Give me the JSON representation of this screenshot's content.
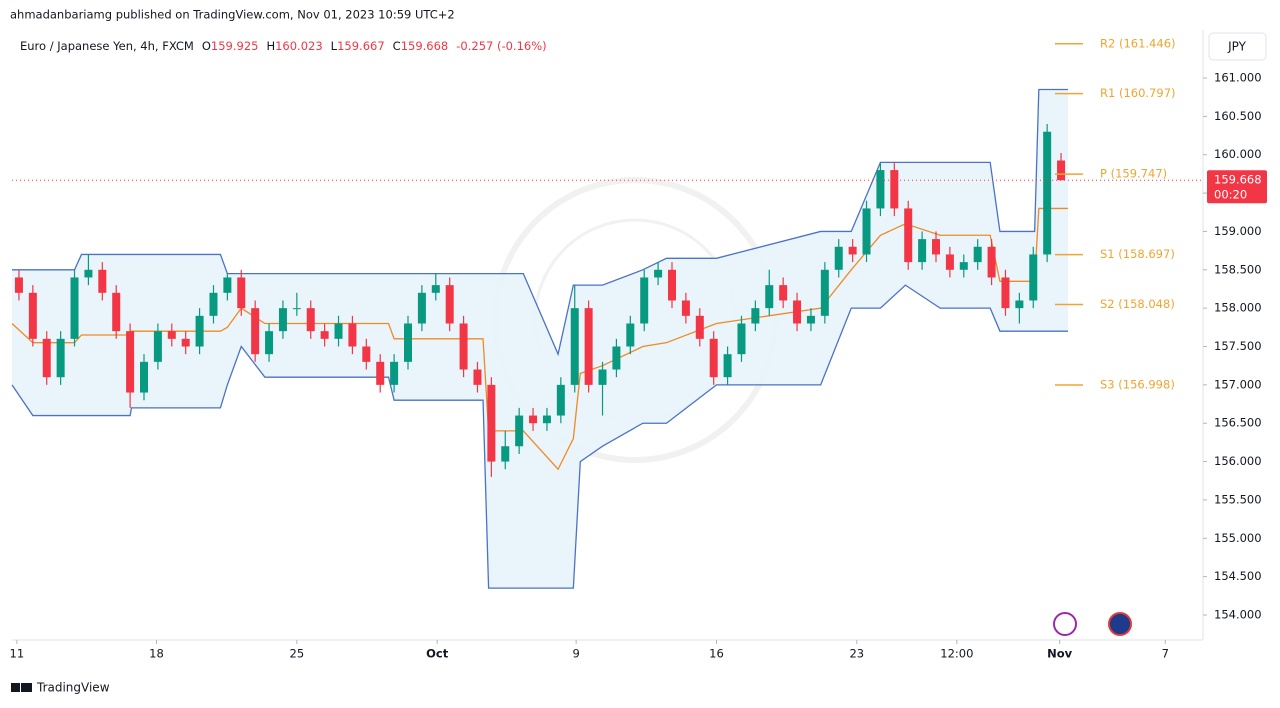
{
  "top_caption": "ahmadanbariamg published on TradingView.com, Nov 01, 2023 10:59 UTC+2",
  "chart_data": {
    "type": "candlestick",
    "title": "Euro / Japanese Yen, 4h, FXCM",
    "ohlc_labels": [
      "O",
      "H",
      "L",
      "C"
    ],
    "change": "-0.257 (-0.16%)",
    "currency": "JPY",
    "countdown": "00:20",
    "up_color": "#089981",
    "down_color": "#f23645",
    "candles": [
      [
        158.4,
        158.5,
        158.1,
        158.2
      ],
      [
        158.2,
        158.3,
        157.5,
        157.6
      ],
      [
        157.6,
        157.7,
        157.0,
        157.1
      ],
      [
        157.1,
        157.7,
        157.0,
        157.6
      ],
      [
        157.6,
        158.5,
        157.5,
        158.4
      ],
      [
        158.4,
        158.7,
        158.3,
        158.5
      ],
      [
        158.5,
        158.6,
        158.1,
        158.2
      ],
      [
        158.2,
        158.3,
        157.6,
        157.7
      ],
      [
        157.7,
        157.8,
        156.7,
        156.9
      ],
      [
        156.9,
        157.4,
        156.8,
        157.3
      ],
      [
        157.3,
        157.8,
        157.2,
        157.7
      ],
      [
        157.7,
        157.8,
        157.5,
        157.6
      ],
      [
        157.6,
        157.7,
        157.4,
        157.5
      ],
      [
        157.5,
        158.0,
        157.4,
        157.9
      ],
      [
        157.9,
        158.3,
        157.8,
        158.2
      ],
      [
        158.2,
        158.45,
        158.1,
        158.4
      ],
      [
        158.4,
        158.5,
        157.9,
        158.0
      ],
      [
        158.0,
        158.1,
        157.3,
        157.4
      ],
      [
        157.4,
        157.8,
        157.3,
        157.7
      ],
      [
        157.7,
        158.1,
        157.6,
        158.0
      ],
      [
        158.0,
        158.2,
        157.9,
        158.0
      ],
      [
        158.0,
        158.1,
        157.6,
        157.7
      ],
      [
        157.7,
        157.8,
        157.5,
        157.6
      ],
      [
        157.6,
        157.9,
        157.5,
        157.8
      ],
      [
        157.8,
        157.9,
        157.4,
        157.5
      ],
      [
        157.5,
        157.6,
        157.2,
        157.3
      ],
      [
        157.3,
        157.4,
        156.9,
        157.0
      ],
      [
        157.0,
        157.4,
        156.9,
        157.3
      ],
      [
        157.3,
        157.9,
        157.2,
        157.8
      ],
      [
        157.8,
        158.3,
        157.7,
        158.2
      ],
      [
        158.2,
        158.45,
        158.1,
        158.3
      ],
      [
        158.3,
        158.4,
        157.7,
        157.8
      ],
      [
        157.8,
        157.9,
        157.1,
        157.2
      ],
      [
        157.2,
        157.3,
        156.9,
        157.0
      ],
      [
        157.0,
        157.1,
        155.8,
        156.0
      ],
      [
        156.0,
        156.4,
        155.9,
        156.2
      ],
      [
        156.2,
        156.7,
        156.1,
        156.6
      ],
      [
        156.6,
        156.7,
        156.4,
        156.5
      ],
      [
        156.5,
        156.7,
        156.4,
        156.6
      ],
      [
        156.6,
        157.1,
        156.5,
        157.0
      ],
      [
        157.0,
        158.3,
        156.9,
        158.0
      ],
      [
        158.0,
        158.1,
        156.9,
        157.0
      ],
      [
        157.0,
        157.3,
        156.6,
        157.2
      ],
      [
        157.2,
        157.6,
        157.1,
        157.5
      ],
      [
        157.5,
        157.9,
        157.4,
        157.8
      ],
      [
        157.8,
        158.5,
        157.7,
        158.4
      ],
      [
        158.4,
        158.6,
        158.3,
        158.5
      ],
      [
        158.5,
        158.6,
        158.0,
        158.1
      ],
      [
        158.1,
        158.2,
        157.8,
        157.9
      ],
      [
        157.9,
        158.0,
        157.5,
        157.6
      ],
      [
        157.6,
        157.7,
        157.0,
        157.1
      ],
      [
        157.1,
        157.5,
        157.0,
        157.4
      ],
      [
        157.4,
        157.9,
        157.3,
        157.8
      ],
      [
        157.8,
        158.1,
        157.7,
        158.0
      ],
      [
        158.0,
        158.5,
        157.9,
        158.3
      ],
      [
        158.3,
        158.4,
        158.0,
        158.1
      ],
      [
        158.1,
        158.2,
        157.7,
        157.8
      ],
      [
        157.8,
        158.0,
        157.7,
        157.9
      ],
      [
        157.9,
        158.6,
        157.8,
        158.5
      ],
      [
        158.5,
        158.9,
        158.4,
        158.8
      ],
      [
        158.8,
        158.9,
        158.6,
        158.7
      ],
      [
        158.7,
        159.4,
        158.6,
        159.3
      ],
      [
        159.3,
        159.9,
        159.2,
        159.8
      ],
      [
        159.8,
        159.9,
        159.2,
        159.3
      ],
      [
        159.3,
        159.4,
        158.5,
        158.6
      ],
      [
        158.6,
        159.0,
        158.5,
        158.9
      ],
      [
        158.9,
        159.0,
        158.6,
        158.7
      ],
      [
        158.7,
        158.8,
        158.4,
        158.5
      ],
      [
        158.5,
        158.7,
        158.4,
        158.6
      ],
      [
        158.6,
        158.9,
        158.5,
        158.8
      ],
      [
        158.8,
        158.9,
        158.3,
        158.4
      ],
      [
        158.4,
        158.5,
        157.9,
        158.0
      ],
      [
        158.0,
        158.2,
        157.8,
        158.1
      ],
      [
        158.1,
        158.8,
        158.0,
        158.7
      ],
      [
        158.7,
        160.4,
        158.6,
        160.3
      ],
      [
        159.925,
        160.023,
        159.667,
        159.668
      ]
    ],
    "xlim": [
      -0.5,
      85
    ],
    "xticks": [
      {
        "value": -0.15,
        "label": "11"
      },
      {
        "value": 9.9,
        "label": "18"
      },
      {
        "value": 20,
        "label": "25"
      },
      {
        "value": 30.1,
        "label": "Oct"
      },
      {
        "value": 40.1,
        "label": "9"
      },
      {
        "value": 50.2,
        "label": "16"
      },
      {
        "value": 60.3,
        "label": "23"
      },
      {
        "value": 67.5,
        "label": "12:00"
      },
      {
        "value": 74.9,
        "label": "Nov"
      },
      {
        "value": 82.5,
        "label": "7"
      }
    ],
    "ylim": [
      153.674,
      161.626
    ],
    "yticks": [
      {
        "value": 161,
        "label": "161.000"
      },
      {
        "value": 160.5,
        "label": "160.500"
      },
      {
        "value": 160,
        "label": "160.000"
      },
      {
        "value": 159.5,
        "label": "159.500"
      },
      {
        "value": 159,
        "label": "159.000"
      },
      {
        "value": 158.5,
        "label": "158.500"
      },
      {
        "value": 158,
        "label": "158.000"
      },
      {
        "value": 157.5,
        "label": "157.500"
      },
      {
        "value": 157,
        "label": "157.000"
      },
      {
        "value": 156.5,
        "label": "156.500"
      },
      {
        "value": 156,
        "label": "156.000"
      },
      {
        "value": 155.5,
        "label": "155.500"
      },
      {
        "value": 155,
        "label": "155.000"
      },
      {
        "value": 154.5,
        "label": "154.500"
      },
      {
        "value": 154,
        "label": "154.000"
      }
    ],
    "channel": {
      "x": [
        -0.5,
        1,
        4,
        4.5,
        8,
        8.1,
        14.5,
        15,
        16,
        17.7,
        26.6,
        27,
        33.4,
        33.8,
        36.3,
        38.8,
        39.9,
        40.4,
        42,
        44.9,
        46.6,
        50.2,
        57.7,
        59.9,
        62,
        63.8,
        66.3,
        69.9,
        70.6,
        73.1,
        73.4,
        75.5
      ],
      "upper": [
        158.5,
        158.5,
        158.5,
        158.7,
        158.7,
        158.7,
        158.7,
        158.45,
        158.45,
        158.45,
        158.45,
        158.45,
        158.45,
        158.45,
        158.45,
        157.4,
        158.3,
        158.3,
        158.3,
        158.5,
        158.65,
        158.65,
        159.0,
        159.0,
        159.9,
        159.9,
        159.9,
        159.9,
        159.0,
        159.0,
        160.85,
        160.85
      ],
      "lower": [
        157.0,
        156.6,
        156.6,
        156.6,
        156.6,
        156.7,
        156.7,
        157.0,
        157.5,
        157.1,
        157.1,
        156.8,
        156.8,
        154.35,
        154.35,
        154.35,
        154.35,
        156.0,
        156.2,
        156.5,
        156.5,
        157.0,
        157.0,
        158.0,
        158.0,
        158.3,
        158.0,
        158.0,
        157.7,
        157.7,
        157.7,
        157.7
      ],
      "basis": [
        157.8,
        157.55,
        157.55,
        157.65,
        157.65,
        157.7,
        157.7,
        157.75,
        158.0,
        157.8,
        157.8,
        157.6,
        157.6,
        156.4,
        156.4,
        155.9,
        156.3,
        157.15,
        157.25,
        157.5,
        157.55,
        157.8,
        158.0,
        158.5,
        158.95,
        159.1,
        158.95,
        158.95,
        158.35,
        158.35,
        159.3,
        159.3
      ],
      "band_color": "#4a72c9",
      "basis_color": "#f08a24",
      "fill": "#e8f3fb"
    },
    "pivots": [
      {
        "label": "R2 (161.446)",
        "value": 161.446
      },
      {
        "label": "R1 (160.797)",
        "value": 160.797
      },
      {
        "label": "P (159.747)",
        "value": 159.747
      },
      {
        "label": "S1 (158.697)",
        "value": 158.697
      },
      {
        "label": "S2 (158.048)",
        "value": 158.048
      },
      {
        "label": "S3 (156.998)",
        "value": 156.998
      }
    ],
    "pivot_color": "#f0a530"
  },
  "footer": {
    "brand": "TradingView"
  }
}
